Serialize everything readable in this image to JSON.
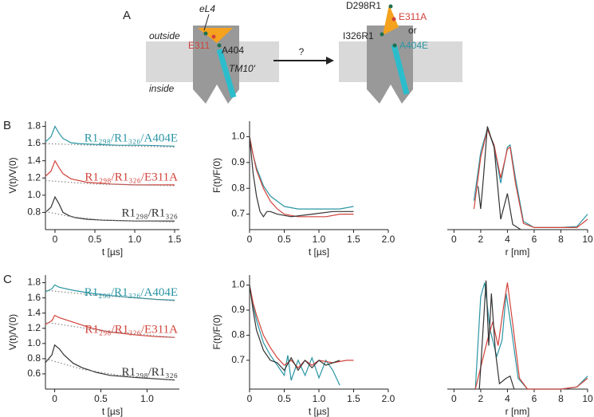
{
  "diagram": {
    "panel": "A",
    "outside": "outside",
    "inside": "inside",
    "loop": "eL4",
    "residue_left": "E311",
    "residue_helix": "A404",
    "helix": "TM10'",
    "question": "?",
    "label_d298": "D298R1",
    "label_e311a": "E311A",
    "or": "or",
    "label_i326": "I326R1",
    "label_a404e": "A404E"
  },
  "chart_data": [
    {
      "type": "line",
      "panel": "B",
      "ylabel": "V(t)/V(0)",
      "xlabel": "t [µs]",
      "label_on_curve": true,
      "xlim": [
        -0.12,
        1.56
      ],
      "ylim": [
        0.6,
        1.86
      ],
      "xticks": [
        0,
        0.5,
        {
          "value": 1,
          "label": "1.0"
        },
        1.5
      ],
      "yticks": [
        0.8,
        {
          "value": 1,
          "label": "1.0"
        },
        1.2,
        1.4,
        1.6,
        1.8
      ],
      "series": [
        {
          "name": "R1₂₉₈/R1₃₂₆/A404E",
          "color": "#2a95a3",
          "x": [
            -0.12,
            -0.05,
            0,
            0.05,
            0.1,
            0.2,
            0.3,
            0.5,
            0.8,
            1.1,
            1.5
          ],
          "values": [
            1.62,
            1.68,
            1.8,
            1.72,
            1.66,
            1.61,
            1.6,
            1.59,
            1.58,
            1.58,
            1.57
          ]
        },
        {
          "color": "#888888",
          "style": "dotted",
          "x": [
            -0.12,
            0.5,
            1.5
          ],
          "values": [
            1.6,
            1.58,
            1.56
          ]
        },
        {
          "name": "R1₂₉₈/R1₃₂₆/E311A",
          "color": "#d2433b",
          "x": [
            -0.12,
            -0.05,
            0,
            0.05,
            0.1,
            0.2,
            0.4,
            0.7,
            1.0,
            1.5
          ],
          "values": [
            1.22,
            1.28,
            1.4,
            1.32,
            1.25,
            1.19,
            1.15,
            1.13,
            1.12,
            1.12
          ]
        },
        {
          "color": "#888888",
          "style": "dotted",
          "x": [
            -0.12,
            0.5,
            1.5
          ],
          "values": [
            1.17,
            1.13,
            1.11
          ]
        },
        {
          "name": "R1₂₉₈/R1₃₂₆",
          "color": "#333333",
          "x": [
            -0.12,
            -0.05,
            0,
            0.05,
            0.1,
            0.18,
            0.25,
            0.4,
            0.6,
            1.0,
            1.5
          ],
          "values": [
            0.8,
            0.86,
            0.98,
            0.9,
            0.8,
            0.76,
            0.74,
            0.72,
            0.71,
            0.7,
            0.7
          ]
        },
        {
          "color": "#888888",
          "style": "dotted",
          "x": [
            -0.12,
            0.2,
            0.6,
            1.5
          ],
          "values": [
            0.81,
            0.75,
            0.71,
            0.69
          ]
        }
      ]
    },
    {
      "type": "line",
      "ylabel": "F(t)/F(0)",
      "xlabel": "t [µs]",
      "xlim": [
        0,
        2
      ],
      "ylim": [
        0.64,
        1.06
      ],
      "xticks": [
        0,
        0.5,
        {
          "value": 1,
          "label": "1.0"
        },
        1.5,
        {
          "value": 2,
          "label": "2.0"
        }
      ],
      "yticks": [
        0.7,
        0.8,
        0.9,
        {
          "value": 1,
          "label": "1.0"
        }
      ],
      "series": [
        {
          "color": "#2a95a3",
          "x": [
            0,
            0.05,
            0.1,
            0.2,
            0.3,
            0.4,
            0.5,
            0.7,
            0.9,
            1.1,
            1.3,
            1.5
          ],
          "values": [
            1.0,
            0.93,
            0.88,
            0.81,
            0.77,
            0.75,
            0.73,
            0.72,
            0.72,
            0.72,
            0.72,
            0.73
          ]
        },
        {
          "color": "#d2433b",
          "x": [
            0,
            0.05,
            0.1,
            0.2,
            0.3,
            0.4,
            0.5,
            0.7,
            0.9,
            1.1,
            1.3,
            1.5
          ],
          "values": [
            1.0,
            0.93,
            0.87,
            0.8,
            0.75,
            0.72,
            0.7,
            0.69,
            0.69,
            0.69,
            0.7,
            0.7
          ]
        },
        {
          "color": "#333333",
          "x": [
            0,
            0.05,
            0.1,
            0.15,
            0.2,
            0.25,
            0.3,
            0.4,
            0.6,
            0.9,
            1.2,
            1.5
          ],
          "values": [
            1.0,
            0.86,
            0.77,
            0.71,
            0.69,
            0.71,
            0.71,
            0.7,
            0.69,
            0.7,
            0.71,
            0.71
          ]
        }
      ]
    },
    {
      "type": "line",
      "xlabel": "r [nm]",
      "xlim": [
        -0.5,
        10
      ],
      "ylim": [
        0,
        1.05
      ],
      "xticks": [
        0,
        2,
        4,
        6,
        8,
        10
      ],
      "series": [
        {
          "color": "#2a95a3",
          "x": [
            1.5,
            2.0,
            2.5,
            3.0,
            3.5,
            4.0,
            4.2,
            4.6,
            5.2,
            6.0,
            8.0,
            9.2,
            10
          ],
          "values": [
            0.28,
            0.75,
            0.98,
            0.8,
            0.45,
            0.8,
            0.82,
            0.5,
            0.08,
            0.02,
            0.02,
            0.03,
            0.15
          ]
        },
        {
          "color": "#d2433b",
          "x": [
            1.5,
            2.0,
            2.5,
            3.0,
            3.5,
            4.0,
            4.2,
            4.6,
            5.2,
            6.0,
            8.0,
            9.2,
            10
          ],
          "values": [
            0.2,
            0.7,
            0.97,
            0.82,
            0.5,
            0.78,
            0.8,
            0.45,
            0.06,
            0.02,
            0.02,
            0.02,
            0.1
          ]
        },
        {
          "color": "#333333",
          "x": [
            1.8,
            2.0,
            2.2,
            2.5,
            3.0,
            3.5,
            4.0,
            4.4,
            5.0
          ],
          "values": [
            0.42,
            0.2,
            0.5,
            1.0,
            0.8,
            0.1,
            0.35,
            0.05,
            0.0
          ]
        }
      ]
    },
    {
      "type": "line",
      "panel": "C",
      "ylabel": "V(t)/V(0)",
      "xlabel": "t [µs]",
      "label_on_curve": true,
      "xlim": [
        -0.1,
        1.35
      ],
      "ylim": [
        0.4,
        1.9
      ],
      "xticks": [
        0,
        0.5,
        {
          "value": 1,
          "label": "1.0"
        }
      ],
      "yticks": [
        0.6,
        0.8,
        {
          "value": 1,
          "label": "1.0"
        },
        1.2,
        1.4,
        1.6,
        1.8
      ],
      "series": [
        {
          "name": "R1₂₉₈/R1₃₂₆/A404E",
          "color": "#2a95a3",
          "x": [
            -0.1,
            -0.03,
            0,
            0.05,
            0.2,
            0.4,
            0.6,
            0.9,
            1.1,
            1.3
          ],
          "values": [
            1.68,
            1.72,
            1.77,
            1.74,
            1.7,
            1.66,
            1.63,
            1.6,
            1.58,
            1.57
          ]
        },
        {
          "color": "#888888",
          "style": "dotted",
          "x": [
            -0.1,
            0.5,
            1.3
          ],
          "values": [
            1.7,
            1.63,
            1.56
          ]
        },
        {
          "name": "R1₂₉₈/R1₃₂₆/E311A",
          "color": "#d2433b",
          "x": [
            -0.1,
            -0.03,
            0,
            0.05,
            0.2,
            0.4,
            0.6,
            0.9,
            1.1,
            1.3
          ],
          "values": [
            1.25,
            1.3,
            1.37,
            1.34,
            1.28,
            1.2,
            1.15,
            1.11,
            1.09,
            1.08
          ]
        },
        {
          "color": "#888888",
          "style": "dotted",
          "x": [
            -0.1,
            0.5,
            1.3
          ],
          "values": [
            1.28,
            1.17,
            1.08
          ]
        },
        {
          "name": "R1₂₉₈/R1₃₂₆",
          "color": "#333333",
          "x": [
            -0.1,
            -0.03,
            0,
            0.05,
            0.1,
            0.2,
            0.3,
            0.45,
            0.6,
            0.9,
            1.3
          ],
          "values": [
            0.75,
            0.85,
            0.98,
            0.93,
            0.85,
            0.74,
            0.68,
            0.62,
            0.58,
            0.55,
            0.52
          ]
        },
        {
          "color": "#888888",
          "style": "dotted",
          "x": [
            -0.1,
            0.3,
            0.7,
            1.3
          ],
          "values": [
            0.8,
            0.66,
            0.58,
            0.52
          ]
        }
      ]
    },
    {
      "type": "line",
      "ylabel": "F(t)/F(0)",
      "xlabel": "t [µs]",
      "xlim": [
        0,
        2
      ],
      "ylim": [
        0.585,
        1.04
      ],
      "xticks": [
        0,
        0.5,
        {
          "value": 1,
          "label": "1.0"
        },
        1.5,
        {
          "value": 2,
          "label": "2.0"
        }
      ],
      "yticks": [
        0.7,
        0.8,
        0.9,
        {
          "value": 1,
          "label": "1.0"
        }
      ],
      "series": [
        {
          "color": "#2a95a3",
          "x": [
            0,
            0.05,
            0.1,
            0.2,
            0.3,
            0.4,
            0.5,
            0.55,
            0.6,
            0.7,
            0.8,
            0.9,
            1.0,
            1.1,
            1.2,
            1.3
          ],
          "values": [
            1.0,
            0.92,
            0.86,
            0.77,
            0.72,
            0.68,
            0.64,
            0.72,
            0.62,
            0.7,
            0.64,
            0.71,
            0.63,
            0.7,
            0.66,
            0.6
          ]
        },
        {
          "color": "#d2433b",
          "x": [
            0,
            0.05,
            0.1,
            0.2,
            0.3,
            0.4,
            0.5,
            0.6,
            0.7,
            0.8,
            0.9,
            1.0,
            1.2,
            1.4,
            1.5
          ],
          "values": [
            1.0,
            0.93,
            0.88,
            0.8,
            0.75,
            0.71,
            0.68,
            0.7,
            0.67,
            0.7,
            0.68,
            0.7,
            0.69,
            0.7,
            0.7
          ]
        },
        {
          "color": "#333333",
          "x": [
            0,
            0.05,
            0.1,
            0.2,
            0.3,
            0.4,
            0.5,
            0.6,
            0.7,
            0.8,
            0.9,
            1.0,
            1.1,
            1.3
          ],
          "values": [
            1.0,
            0.9,
            0.82,
            0.74,
            0.7,
            0.69,
            0.66,
            0.71,
            0.66,
            0.7,
            0.67,
            0.7,
            0.68,
            0.7
          ]
        }
      ]
    },
    {
      "type": "line",
      "xlabel": "r [nm]",
      "xlim": [
        -0.5,
        10
      ],
      "ylim": [
        0,
        1.05
      ],
      "xticks": [
        0,
        2,
        4,
        6,
        8,
        10
      ],
      "series": [
        {
          "color": "#2a95a3",
          "x": [
            1.6,
            2.0,
            2.3,
            2.7,
            3.2,
            3.6,
            3.9,
            4.3,
            4.8,
            5.5,
            8.0,
            9.2,
            10
          ],
          "values": [
            0.0,
            0.85,
            0.98,
            0.55,
            0.3,
            0.45,
            0.88,
            0.55,
            0.1,
            0.0,
            0.0,
            0.02,
            0.12
          ]
        },
        {
          "color": "#d2433b",
          "x": [
            1.6,
            2.0,
            2.5,
            2.9,
            3.3,
            3.7,
            4.0,
            4.4,
            4.9,
            5.5,
            8.0,
            9.2,
            10
          ],
          "values": [
            0.0,
            0.2,
            0.45,
            0.62,
            0.4,
            0.75,
            0.98,
            0.6,
            0.1,
            0.0,
            0.0,
            0.02,
            0.1
          ]
        },
        {
          "color": "#333333",
          "x": [
            1.9,
            2.2,
            2.4,
            2.6,
            2.8,
            3.1,
            3.4,
            3.9,
            4.2,
            4.5
          ],
          "values": [
            0.0,
            0.6,
            1.0,
            0.4,
            0.88,
            0.35,
            0.05,
            0.1,
            0.12,
            0.0
          ]
        }
      ]
    }
  ]
}
